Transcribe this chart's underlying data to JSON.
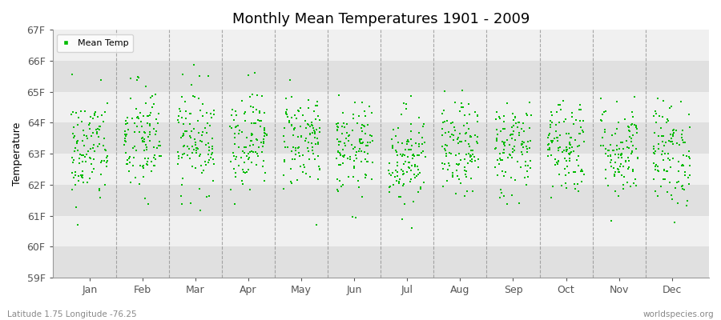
{
  "title": "Monthly Mean Temperatures 1901 - 2009",
  "ylabel": "Temperature",
  "ylim": [
    59,
    67
  ],
  "yticks": [
    59,
    60,
    61,
    62,
    63,
    64,
    65,
    66,
    67
  ],
  "ytick_labels": [
    "59F",
    "60F",
    "61F",
    "62F",
    "63F",
    "64F",
    "65F",
    "66F",
    "67F"
  ],
  "months": [
    "Jan",
    "Feb",
    "Mar",
    "Apr",
    "May",
    "Jun",
    "Jul",
    "Aug",
    "Sep",
    "Oct",
    "Nov",
    "Dec"
  ],
  "dot_color": "#00bb00",
  "background_color": "#ffffff",
  "plot_bg_light": "#f0f0f0",
  "plot_bg_dark": "#e0e0e0",
  "legend_label": "Mean Temp",
  "subtitle_left": "Latitude 1.75 Longitude -76.25",
  "subtitle_right": "worldspecies.org",
  "n_years": 109,
  "month_means": [
    63.1,
    63.4,
    63.5,
    63.5,
    63.5,
    63.1,
    62.9,
    63.1,
    63.2,
    63.3,
    63.1,
    63.0
  ],
  "month_stds": [
    0.9,
    0.95,
    0.85,
    0.8,
    0.8,
    0.75,
    0.8,
    0.75,
    0.8,
    0.8,
    0.8,
    0.85
  ],
  "seed": 42,
  "dot_size": 2,
  "dashed_color": "#888888"
}
